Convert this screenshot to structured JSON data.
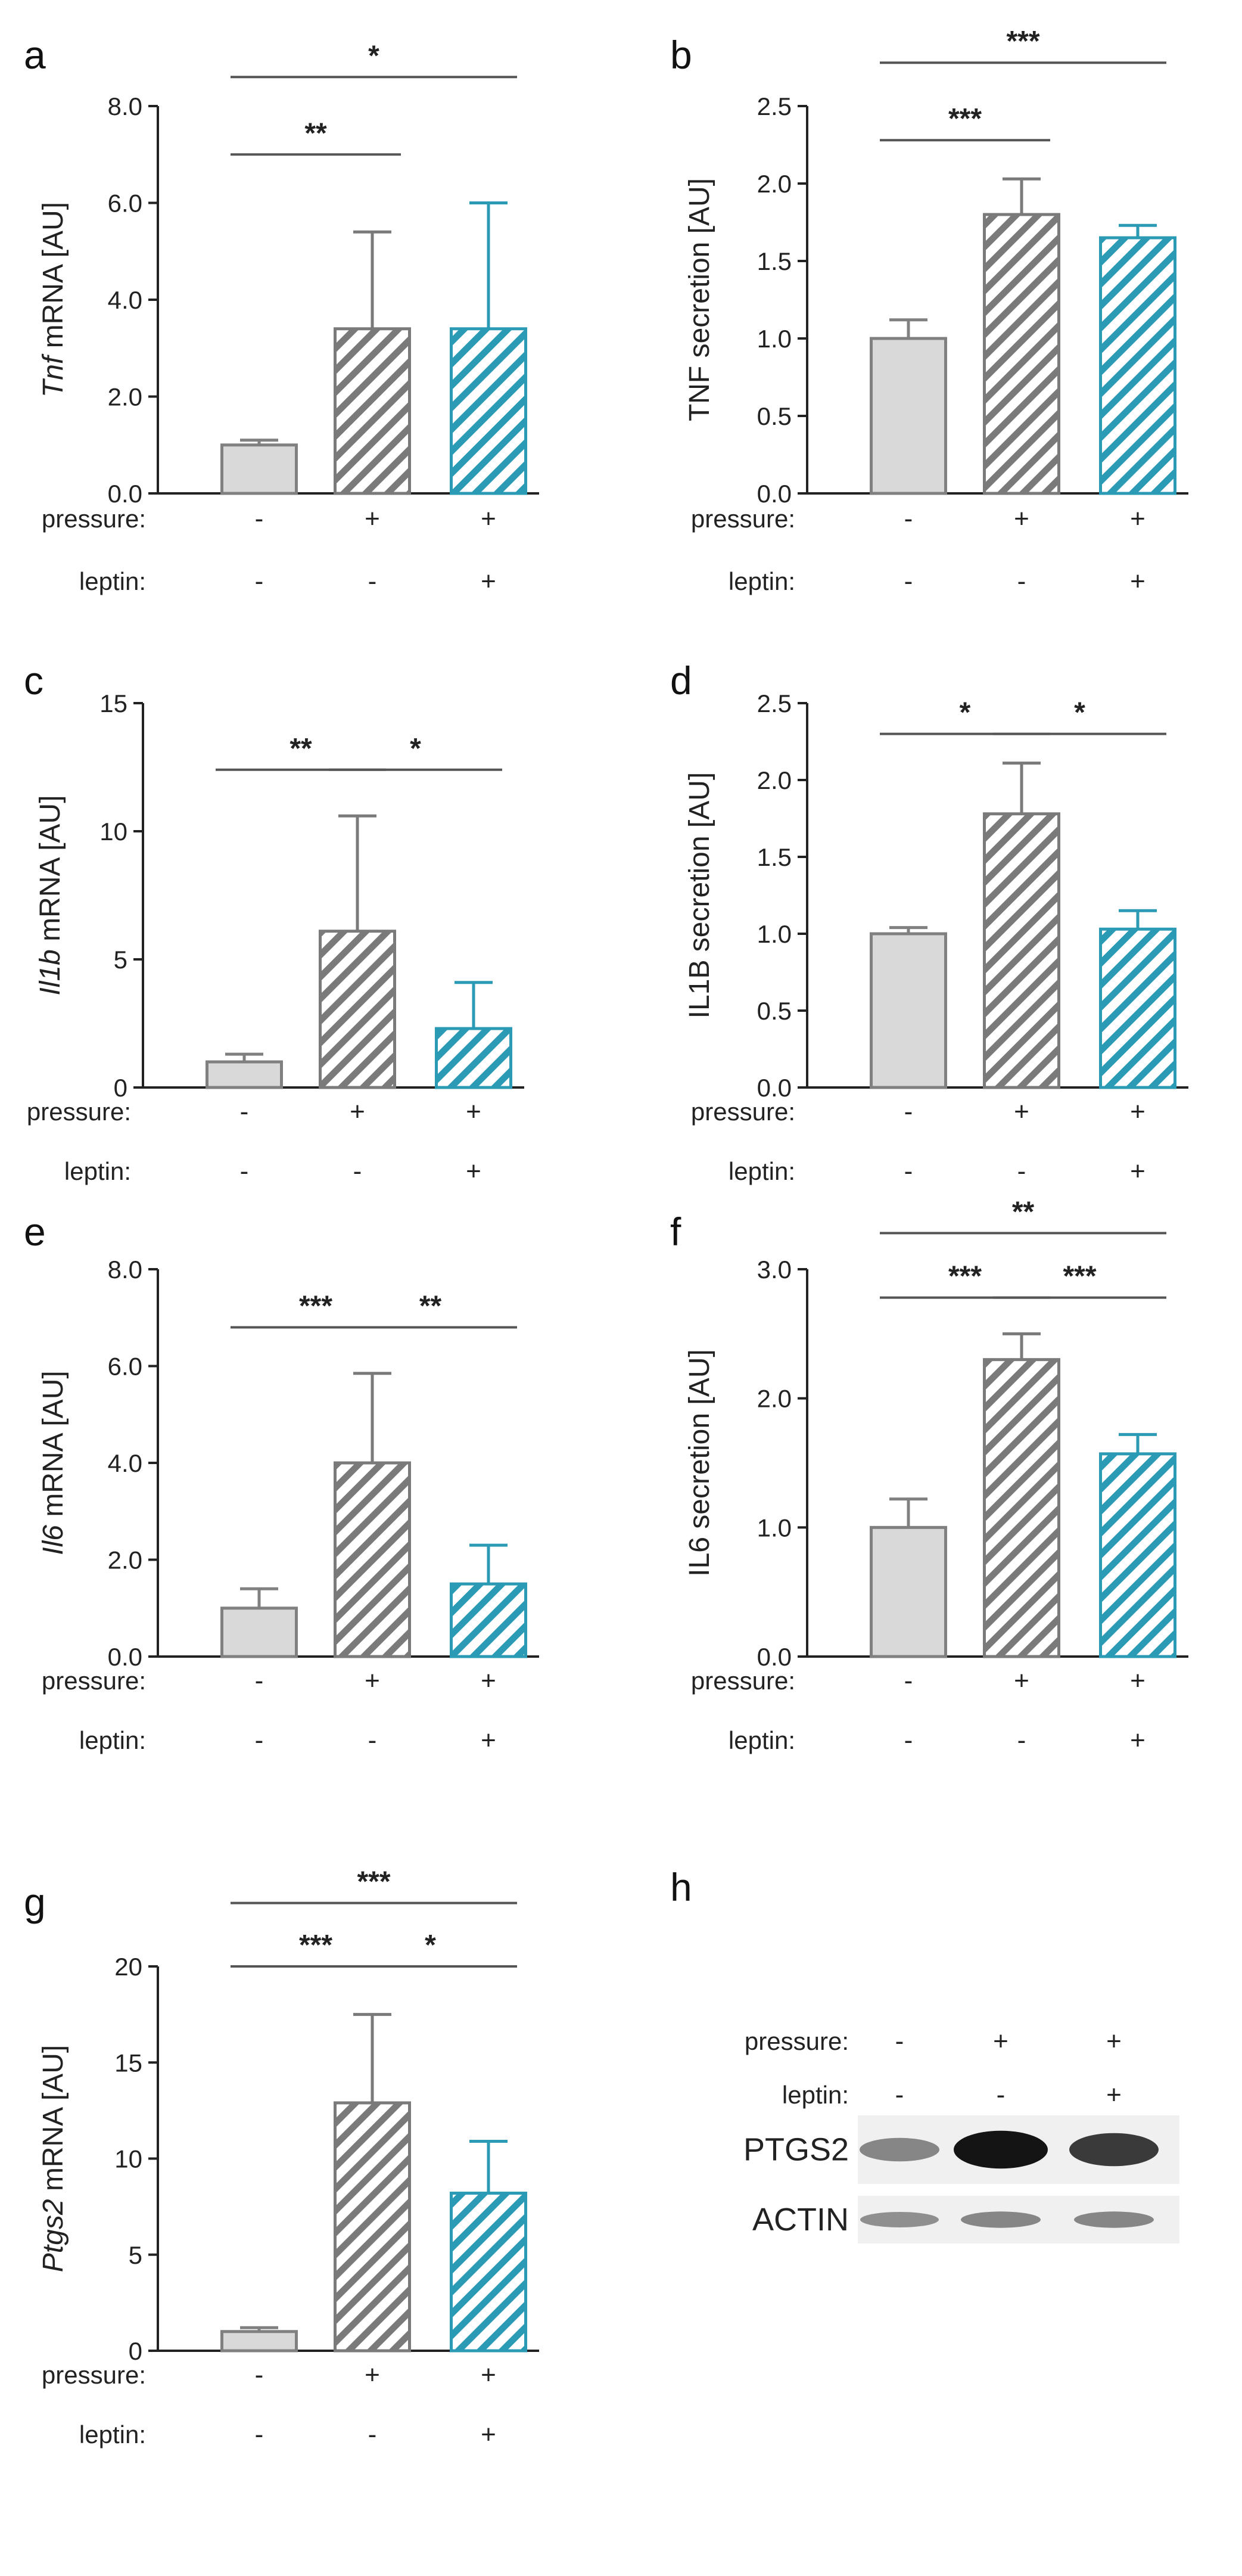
{
  "colors": {
    "control_fill": "#d9d9d9",
    "control_stroke": "#808080",
    "pressure_hatch": "#7a7a7a",
    "leptin_hatch": "#2a9ab5",
    "axis": "#222222"
  },
  "condition_labels": {
    "pressure": "pressure:",
    "leptin": "leptin:"
  },
  "condition_signs": {
    "pressure": [
      "-",
      "+",
      "+"
    ],
    "leptin": [
      "-",
      "-",
      "+"
    ]
  },
  "chart_data": [
    {
      "id": "a",
      "panel": "a",
      "type": "bar",
      "ylabel_italic": "Tnf",
      "ylabel_rest": " mRNA [AU]",
      "ylim": [
        0,
        8
      ],
      "yticks": [
        0,
        2,
        4,
        6,
        8
      ],
      "ytick_labels": [
        "0.0",
        "2.0",
        "4.0",
        "6.0",
        "8.0"
      ],
      "values": [
        1.0,
        3.4,
        3.4
      ],
      "errors": [
        0.1,
        2.0,
        2.6
      ],
      "significance": [
        {
          "from": 0,
          "to": 2,
          "label": "*",
          "y": 8.6
        },
        {
          "from": 0,
          "to": 1,
          "label": "**",
          "y": 7.0
        }
      ]
    },
    {
      "id": "b",
      "panel": "b",
      "type": "bar",
      "ylabel_italic": "",
      "ylabel_rest": "TNF secretion [AU]",
      "ylim": [
        0,
        2.5
      ],
      "yticks": [
        0,
        0.5,
        1,
        1.5,
        2,
        2.5
      ],
      "ytick_labels": [
        "0.0",
        "0.5",
        "1.0",
        "1.5",
        "2.0",
        "2.5"
      ],
      "values": [
        1.0,
        1.8,
        1.65
      ],
      "errors": [
        0.12,
        0.23,
        0.08
      ],
      "significance": [
        {
          "from": 0,
          "to": 2,
          "label": "***",
          "y": 2.78
        },
        {
          "from": 0,
          "to": 1,
          "label": "***",
          "y": 2.28
        }
      ]
    },
    {
      "id": "c",
      "panel": "c",
      "type": "bar",
      "ylabel_italic": "Il1b",
      "ylabel_rest": " mRNA [AU]",
      "ylim": [
        0,
        15
      ],
      "yticks": [
        0,
        5,
        10,
        15
      ],
      "ytick_labels": [
        "0",
        "5",
        "10",
        "15"
      ],
      "values": [
        1.0,
        6.1,
        2.3
      ],
      "errors": [
        0.3,
        4.5,
        1.8
      ],
      "significance": [
        {
          "from": 0,
          "to": 1,
          "label": "**",
          "y": 12.4
        },
        {
          "from": 1,
          "to": 2,
          "label": "*",
          "y": 12.4
        }
      ]
    },
    {
      "id": "d",
      "panel": "d",
      "type": "bar",
      "ylabel_italic": "",
      "ylabel_rest": "IL1B secretion [AU]",
      "ylim": [
        0,
        2.5
      ],
      "yticks": [
        0,
        0.5,
        1,
        1.5,
        2,
        2.5
      ],
      "ytick_labels": [
        "0.0",
        "0.5",
        "1.0",
        "1.5",
        "2.0",
        "2.5"
      ],
      "values": [
        1.0,
        1.78,
        1.03
      ],
      "errors": [
        0.04,
        0.33,
        0.12
      ],
      "significance": [
        {
          "from": 0,
          "to": 1,
          "label": "*",
          "y": 2.3
        },
        {
          "from": 1,
          "to": 2,
          "label": "*",
          "y": 2.3
        }
      ]
    },
    {
      "id": "e",
      "panel": "e",
      "type": "bar",
      "ylabel_italic": "Il6",
      "ylabel_rest": " mRNA [AU]",
      "ylim": [
        0,
        8
      ],
      "yticks": [
        0,
        2,
        4,
        6,
        8
      ],
      "ytick_labels": [
        "0.0",
        "2.0",
        "4.0",
        "6.0",
        "8.0"
      ],
      "values": [
        1.0,
        4.0,
        1.5
      ],
      "errors": [
        0.4,
        1.85,
        0.8
      ],
      "significance": [
        {
          "from": 0,
          "to": 1,
          "label": "***",
          "y": 6.8
        },
        {
          "from": 1,
          "to": 2,
          "label": "**",
          "y": 6.8
        }
      ]
    },
    {
      "id": "f",
      "panel": "f",
      "type": "bar",
      "ylabel_italic": "",
      "ylabel_rest": "IL6 secretion [AU]",
      "ylim": [
        0,
        3
      ],
      "yticks": [
        0,
        1,
        2,
        3
      ],
      "ytick_labels": [
        "0.0",
        "1.0",
        "2.0",
        "3.0"
      ],
      "values": [
        1.0,
        2.3,
        1.57
      ],
      "errors": [
        0.22,
        0.2,
        0.15
      ],
      "significance": [
        {
          "from": 0,
          "to": 2,
          "label": "**",
          "y": 3.28
        },
        {
          "from": 0,
          "to": 1,
          "label": "***",
          "y": 2.78
        },
        {
          "from": 1,
          "to": 2,
          "label": "***",
          "y": 2.78
        }
      ]
    },
    {
      "id": "g",
      "panel": "g",
      "type": "bar",
      "ylabel_italic": "Ptgs2",
      "ylabel_rest": " mRNA [AU]",
      "ylim": [
        0,
        20
      ],
      "yticks": [
        0,
        5,
        10,
        15,
        20
      ],
      "ytick_labels": [
        "0",
        "5",
        "10",
        "15",
        "20"
      ],
      "values": [
        1.0,
        12.9,
        8.2
      ],
      "errors": [
        0.2,
        4.6,
        2.7
      ],
      "significance": [
        {
          "from": 0,
          "to": 2,
          "label": "***",
          "y": 23.3
        },
        {
          "from": 0,
          "to": 1,
          "label": "***",
          "y": 20.0
        },
        {
          "from": 1,
          "to": 2,
          "label": "*",
          "y": 20.0
        }
      ]
    }
  ],
  "blot": {
    "panel": "h",
    "bands": [
      {
        "label": "PTGS2",
        "intensities": [
          0.35,
          0.95,
          0.75
        ]
      },
      {
        "label": "ACTIN",
        "intensities": [
          0.3,
          0.35,
          0.35
        ]
      }
    ]
  }
}
